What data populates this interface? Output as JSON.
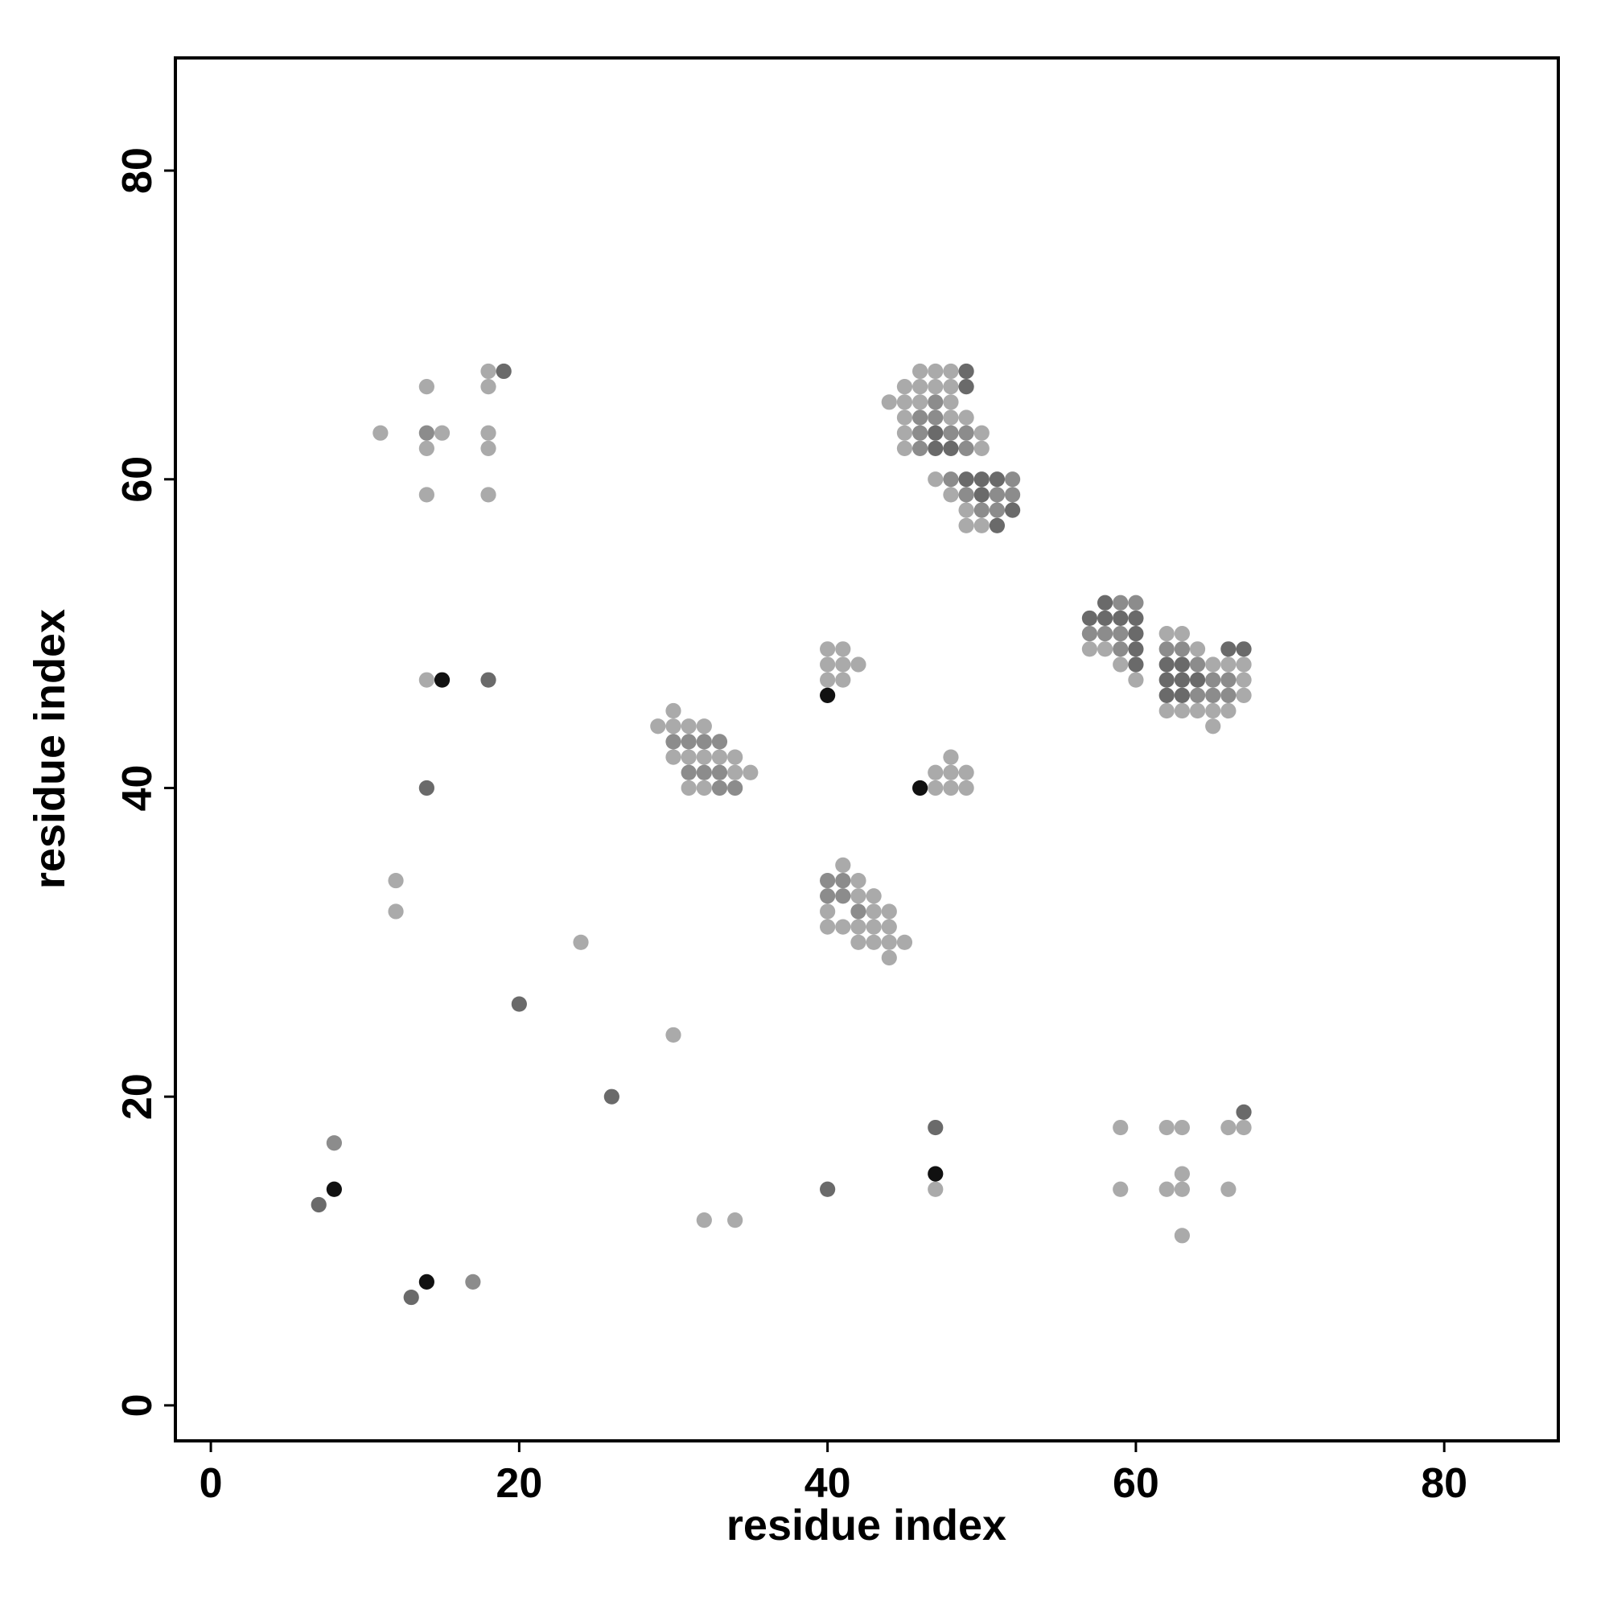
{
  "chart_data": {
    "type": "scatter",
    "x_label": "residue index",
    "y_label": "residue index",
    "xlim": [
      -2.3,
      87.4
    ],
    "ylim": [
      -2.3,
      87.3
    ],
    "xticks": [
      0,
      20,
      40,
      60,
      80
    ],
    "yticks": [
      0,
      20,
      40,
      60,
      80
    ],
    "series": [
      {
        "color": "#aaaaaa",
        "x": [
          11,
          14,
          14,
          15,
          14,
          18,
          18,
          18,
          18,
          18,
          14,
          12,
          12,
          24,
          30,
          32,
          34,
          47,
          59,
          59,
          62,
          63,
          62,
          63,
          63,
          63,
          66,
          67,
          66,
          30,
          29,
          30,
          31,
          32,
          30,
          34,
          34,
          35,
          31,
          32,
          31,
          32,
          33,
          40,
          41,
          40,
          41,
          42,
          40,
          41,
          48,
          47,
          48,
          49,
          47,
          48,
          49,
          41,
          42,
          42,
          43,
          40,
          43,
          44,
          40,
          41,
          42,
          43,
          44,
          42,
          43,
          44,
          45,
          44,
          46,
          47,
          48,
          45,
          46,
          47,
          48,
          44,
          45,
          46,
          48,
          45,
          48,
          49,
          45,
          50,
          45,
          50,
          47,
          48,
          49,
          49,
          50,
          57,
          58,
          59,
          60,
          62,
          63,
          64,
          65,
          66,
          67,
          67,
          67,
          62,
          63,
          64,
          65,
          66,
          65
        ],
        "y": [
          63,
          66,
          62,
          63,
          59,
          67,
          66,
          63,
          62,
          59,
          47,
          34,
          32,
          30,
          24,
          12,
          12,
          14,
          18,
          14,
          18,
          18,
          14,
          14,
          15,
          11,
          18,
          18,
          14,
          45,
          44,
          44,
          44,
          44,
          42,
          42,
          41,
          41,
          40,
          40,
          42,
          42,
          42,
          49,
          49,
          48,
          48,
          48,
          47,
          47,
          42,
          41,
          41,
          41,
          40,
          40,
          40,
          35,
          34,
          33,
          33,
          32,
          32,
          32,
          31,
          31,
          31,
          31,
          31,
          30,
          30,
          30,
          30,
          29,
          67,
          67,
          67,
          66,
          66,
          66,
          66,
          65,
          65,
          65,
          65,
          64,
          64,
          64,
          63,
          63,
          62,
          62,
          60,
          59,
          58,
          57,
          57,
          49,
          49,
          48,
          47,
          50,
          50,
          49,
          48,
          48,
          48,
          47,
          46,
          45,
          45,
          45,
          45,
          45,
          44
        ]
      },
      {
        "color": "#8c8c8c",
        "x": [
          14,
          30,
          31,
          32,
          33,
          31,
          32,
          33,
          33,
          34,
          40,
          41,
          40,
          41,
          42,
          47,
          46,
          47,
          46,
          48,
          49,
          46,
          49,
          48,
          52,
          49,
          51,
          52,
          50,
          51,
          59,
          60,
          57,
          58,
          59,
          59,
          62,
          63,
          64,
          65,
          66,
          64,
          65,
          66,
          17,
          8
        ],
        "y": [
          63,
          43,
          43,
          43,
          43,
          41,
          41,
          41,
          40,
          40,
          34,
          34,
          33,
          33,
          32,
          65,
          64,
          64,
          63,
          63,
          63,
          62,
          62,
          60,
          60,
          59,
          59,
          59,
          58,
          58,
          52,
          52,
          50,
          50,
          50,
          49,
          49,
          49,
          48,
          47,
          47,
          46,
          46,
          46,
          8,
          17
        ]
      },
      {
        "color": "#6a6a6a",
        "x": [
          19,
          18,
          14,
          20,
          26,
          7,
          13,
          40,
          47,
          67,
          49,
          49,
          47,
          47,
          48,
          49,
          50,
          51,
          50,
          52,
          51,
          58,
          57,
          58,
          59,
          60,
          60,
          60,
          60,
          66,
          67,
          62,
          63,
          62,
          63,
          64,
          62,
          63
        ],
        "y": [
          67,
          47,
          40,
          26,
          20,
          13,
          7,
          14,
          18,
          19,
          67,
          66,
          63,
          62,
          62,
          60,
          60,
          60,
          59,
          58,
          57,
          52,
          51,
          51,
          51,
          51,
          50,
          49,
          48,
          49,
          49,
          48,
          48,
          47,
          47,
          47,
          46,
          46
        ]
      },
      {
        "color": "#111111",
        "x": [
          15,
          8,
          14,
          40,
          46,
          47
        ],
        "y": [
          47,
          14,
          8,
          46,
          40,
          15
        ]
      }
    ]
  }
}
